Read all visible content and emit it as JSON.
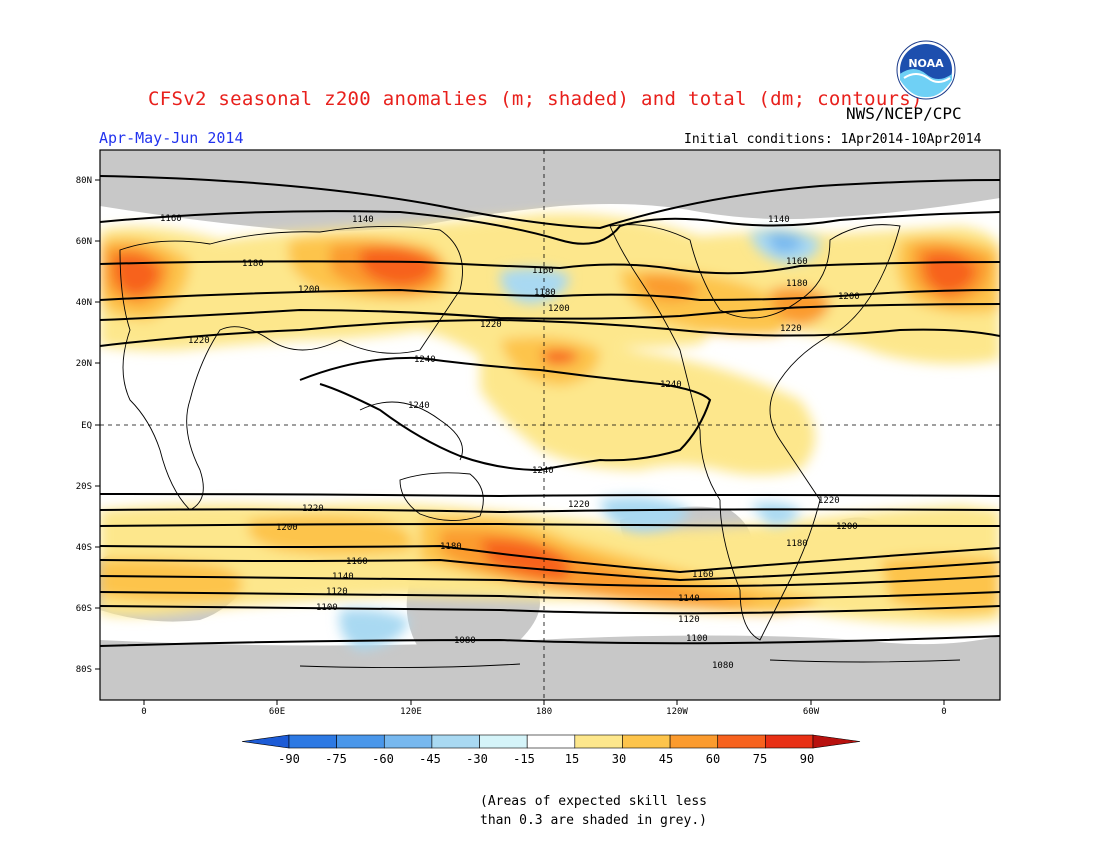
{
  "header": {
    "title": "CFSv2 seasonal z200 anomalies (m; shaded) and total (dm; contours)",
    "agency": "NWS/NCEP/CPC",
    "season": "Apr-May-Jun 2014",
    "initial_conditions": "Initial conditions: 1Apr2014-10Apr2014",
    "logo_text": "NOAA"
  },
  "map": {
    "lat_labels": [
      "80N",
      "60N",
      "40N",
      "20N",
      "EQ",
      "20S",
      "40S",
      "60S",
      "80S"
    ],
    "lon_labels": [
      "0",
      "60E",
      "120E",
      "180",
      "120W",
      "60W",
      "0"
    ],
    "contours": [
      {
        "value": "1080",
        "labels": [
          "1080",
          "1080"
        ]
      },
      {
        "value": "1100",
        "labels": [
          "1100",
          "1100"
        ]
      },
      {
        "value": "1120",
        "labels": [
          "1120",
          "1120"
        ]
      },
      {
        "value": "1140",
        "labels": [
          "1140",
          "1140",
          "1140",
          "1140"
        ]
      },
      {
        "value": "1160",
        "labels": [
          "1160",
          "1160",
          "1160",
          "1160",
          "1160"
        ]
      },
      {
        "value": "1180",
        "labels": [
          "1180",
          "1180",
          "1180",
          "1180",
          "1180"
        ]
      },
      {
        "value": "1200",
        "labels": [
          "1200",
          "1200",
          "1200",
          "1200",
          "1200"
        ]
      },
      {
        "value": "1220",
        "labels": [
          "1220",
          "1220",
          "1220",
          "1220",
          "1220",
          "1220"
        ]
      },
      {
        "value": "1240",
        "labels": [
          "1240",
          "1240",
          "1240",
          "1240"
        ]
      }
    ]
  },
  "colorbar": {
    "labels": [
      "-90",
      "-75",
      "-60",
      "-45",
      "-30",
      "-15",
      "15",
      "30",
      "45",
      "60",
      "75",
      "90"
    ],
    "colors": [
      "#1c5bd6",
      "#2d79e3",
      "#4a97ea",
      "#77b8ef",
      "#a9d9f2",
      "#d5f4f9",
      "#ffffff",
      "#fde78c",
      "#fdc44b",
      "#fb9b2e",
      "#f7621e",
      "#e83015",
      "#b8110e"
    ],
    "grey_color": "#c8c8c8"
  },
  "footnote": {
    "line1": "(Areas of expected skill less",
    "line2": "than 0.3 are shaded in grey.)"
  }
}
